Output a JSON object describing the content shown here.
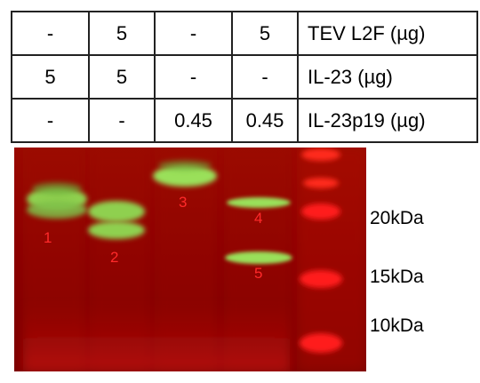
{
  "table": {
    "rows": [
      {
        "cells": [
          "-",
          "5",
          "-",
          "5"
        ],
        "label": "TEV L2F (µg)"
      },
      {
        "cells": [
          "5",
          "5",
          "-",
          "-"
        ],
        "label": "IL-23 (µg)"
      },
      {
        "cells": [
          "-",
          "-",
          "0.45",
          "0.45"
        ],
        "label": "IL-23p19 (µg)"
      }
    ]
  },
  "gel": {
    "band_labels": [
      "1",
      "2",
      "3",
      "4",
      "5"
    ],
    "markers": [
      "20kDa",
      "15kDa",
      "10kDa"
    ],
    "colors": {
      "background": "#8a0000",
      "protein_band": "#9ae05a",
      "ladder_band": "#ff1a1a",
      "band_label": "#ff2a2a"
    }
  }
}
